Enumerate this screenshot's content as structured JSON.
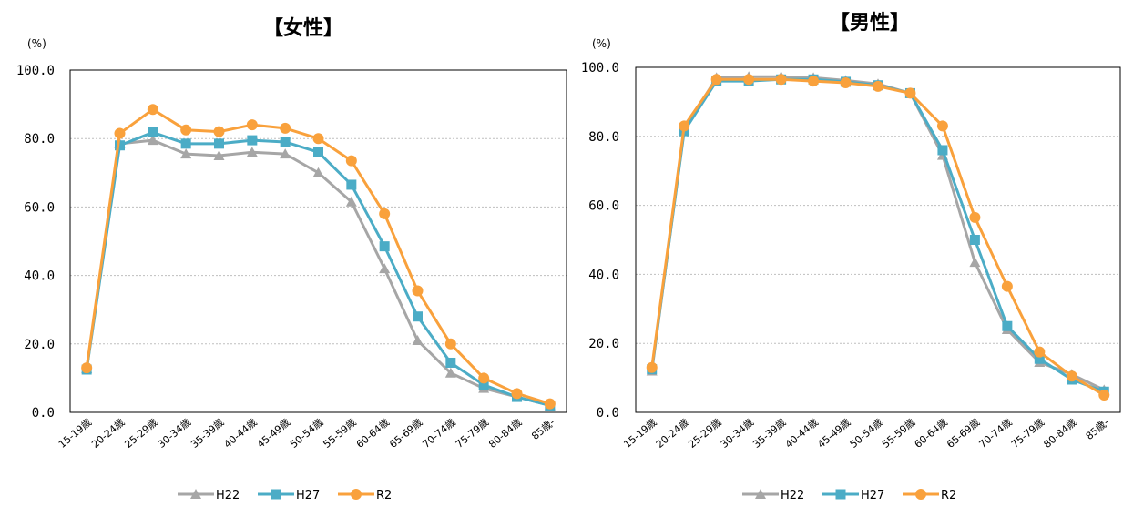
{
  "chart_data": [
    {
      "type": "line",
      "title": "【女性】",
      "unit": "(%)",
      "categories": [
        "15-19歳",
        "20-24歳",
        "25-29歳",
        "30-34歳",
        "35-39歳",
        "40-44歳",
        "45-49歳",
        "50-54歳",
        "55-59歳",
        "60-64歳",
        "65-69歳",
        "70-74歳",
        "75-79歳",
        "80-84歳",
        "85歳-"
      ],
      "ylim": [
        0,
        100
      ],
      "yticks": [
        "0.0",
        "20.0",
        "40.0",
        "60.0",
        "80.0",
        "100.0"
      ],
      "grid": true,
      "legend": "bottom",
      "series": [
        {
          "name": "H22",
          "color": "#a6a6a6",
          "marker": "triangle",
          "values": [
            12.8,
            78.5,
            79.5,
            75.5,
            75.0,
            76.0,
            75.5,
            70.0,
            61.5,
            42.0,
            21.0,
            11.5,
            7.0,
            4.5,
            2.0
          ]
        },
        {
          "name": "H27",
          "color": "#4bacc6",
          "marker": "square",
          "values": [
            12.5,
            78.0,
            81.8,
            78.5,
            78.5,
            79.5,
            79.0,
            76.0,
            66.5,
            48.5,
            28.0,
            14.5,
            8.0,
            4.5,
            2.0
          ]
        },
        {
          "name": "R2",
          "color": "#f9a13c",
          "marker": "circle",
          "values": [
            13.0,
            81.5,
            88.5,
            82.5,
            82.0,
            84.0,
            83.0,
            80.0,
            73.5,
            58.0,
            35.5,
            20.0,
            10.0,
            5.5,
            2.5
          ]
        }
      ]
    },
    {
      "type": "line",
      "title": "【男性】",
      "unit": "(%)",
      "categories": [
        "15-19歳",
        "20-24歳",
        "25-29歳",
        "30-34歳",
        "35-39歳",
        "40-44歳",
        "45-49歳",
        "50-54歳",
        "55-59歳",
        "60-64歳",
        "65-69歳",
        "70-74歳",
        "75-79歳",
        "80-84歳",
        "85歳-"
      ],
      "ylim": [
        0,
        100
      ],
      "yticks": [
        "0.0",
        "20.0",
        "40.0",
        "60.0",
        "80.0",
        "100.0"
      ],
      "grid": true,
      "legend": "bottom",
      "series": [
        {
          "name": "H22",
          "color": "#a6a6a6",
          "marker": "triangle",
          "values": [
            12.0,
            82.0,
            97.0,
            97.3,
            97.3,
            97.0,
            96.2,
            95.2,
            92.5,
            74.5,
            43.5,
            24.0,
            14.5,
            11.0,
            6.5
          ]
        },
        {
          "name": "H27",
          "color": "#4bacc6",
          "marker": "square",
          "values": [
            12.5,
            81.5,
            96.0,
            96.0,
            96.5,
            96.5,
            95.8,
            94.8,
            92.5,
            76.0,
            50.0,
            25.0,
            15.5,
            9.5,
            6.0
          ]
        },
        {
          "name": "R2",
          "color": "#f9a13c",
          "marker": "circle",
          "values": [
            13.0,
            83.0,
            96.5,
            96.5,
            96.5,
            96.0,
            95.5,
            94.5,
            92.5,
            83.0,
            56.5,
            36.5,
            17.5,
            10.5,
            5.0
          ]
        }
      ]
    }
  ]
}
